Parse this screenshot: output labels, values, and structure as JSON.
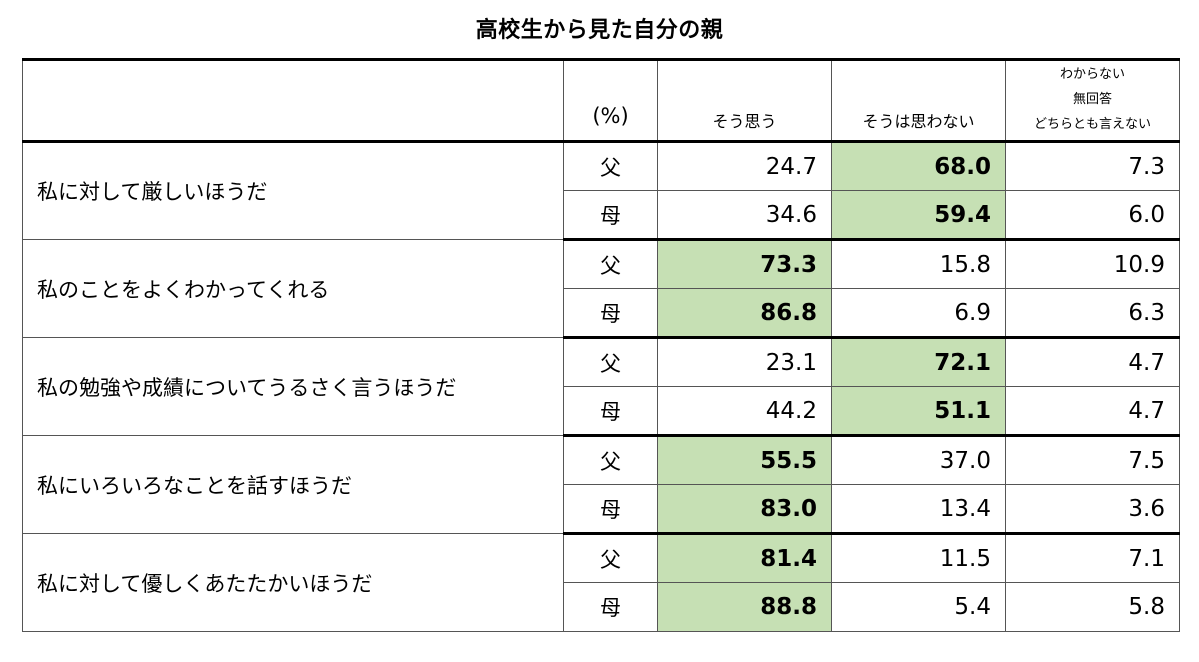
{
  "chart_data": {
    "type": "table",
    "title": "高校生から見た自分の親",
    "unit_label": "(%)",
    "columns": [
      "そう思う",
      "そうは思わない",
      [
        "わからない",
        "無回答",
        "どちらとも言えない"
      ]
    ],
    "highlight_color": "#c6e0b4",
    "rows": [
      {
        "item": "私に対して厳しいほうだ",
        "parents": [
          {
            "label": "父",
            "values": [
              "24.7",
              "68.0",
              "7.3"
            ],
            "highlight": 1
          },
          {
            "label": "母",
            "values": [
              "34.6",
              "59.4",
              "6.0"
            ],
            "highlight": 1
          }
        ]
      },
      {
        "item": "私のことをよくわかってくれる",
        "parents": [
          {
            "label": "父",
            "values": [
              "73.3",
              "15.8",
              "10.9"
            ],
            "highlight": 0
          },
          {
            "label": "母",
            "values": [
              "86.8",
              "6.9",
              "6.3"
            ],
            "highlight": 0
          }
        ]
      },
      {
        "item": "私の勉強や成績についてうるさく言うほうだ",
        "parents": [
          {
            "label": "父",
            "values": [
              "23.1",
              "72.1",
              "4.7"
            ],
            "highlight": 1
          },
          {
            "label": "母",
            "values": [
              "44.2",
              "51.1",
              "4.7"
            ],
            "highlight": 1
          }
        ]
      },
      {
        "item": "私にいろいろなことを話すほうだ",
        "parents": [
          {
            "label": "父",
            "values": [
              "55.5",
              "37.0",
              "7.5"
            ],
            "highlight": 0
          },
          {
            "label": "母",
            "values": [
              "83.0",
              "13.4",
              "3.6"
            ],
            "highlight": 0
          }
        ]
      },
      {
        "item": "私に対して優しくあたたかいほうだ",
        "parents": [
          {
            "label": "父",
            "values": [
              "81.4",
              "11.5",
              "7.1"
            ],
            "highlight": 0
          },
          {
            "label": "母",
            "values": [
              "88.8",
              "5.4",
              "5.8"
            ],
            "highlight": 0
          }
        ]
      }
    ]
  }
}
